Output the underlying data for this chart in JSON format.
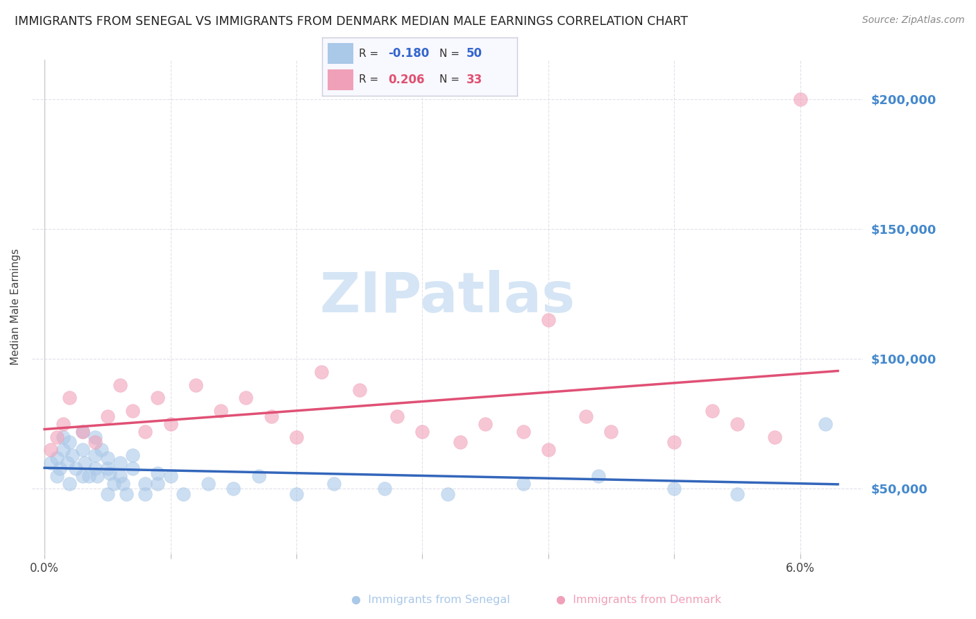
{
  "title": "IMMIGRANTS FROM SENEGAL VS IMMIGRANTS FROM DENMARK MEDIAN MALE EARNINGS CORRELATION CHART",
  "source": "Source: ZipAtlas.com",
  "ylabel": "Median Male Earnings",
  "xlim": [
    -0.001,
    0.065
  ],
  "ylim": [
    25000,
    215000
  ],
  "yticks": [
    50000,
    100000,
    150000,
    200000
  ],
  "xticks": [
    0.0,
    0.01,
    0.02,
    0.03,
    0.04,
    0.05,
    0.06
  ],
  "xtick_labels": [
    "0.0%",
    "",
    "",
    "",
    "",
    "",
    "6.0%"
  ],
  "R_senegal": -0.18,
  "N_senegal": 50,
  "R_denmark": 0.206,
  "N_denmark": 33,
  "senegal_color": "#aac8e8",
  "denmark_color": "#f0a0b8",
  "trend_senegal_color": "#3366bb",
  "trend_denmark_color": "#e05075",
  "watermark": "ZIPatlas",
  "watermark_color": "#d5e5f5",
  "background_color": "#ffffff",
  "grid_color": "#e0e0ec",
  "legend_box_color": "#f8f8ff",
  "legend_border_color": "#ccccdd",
  "senegal_x": [
    0.0005,
    0.001,
    0.001,
    0.0012,
    0.0015,
    0.0015,
    0.0018,
    0.002,
    0.002,
    0.0022,
    0.0025,
    0.003,
    0.003,
    0.003,
    0.0032,
    0.0035,
    0.004,
    0.004,
    0.004,
    0.0042,
    0.0045,
    0.005,
    0.005,
    0.005,
    0.0052,
    0.0055,
    0.006,
    0.006,
    0.0062,
    0.0065,
    0.007,
    0.007,
    0.008,
    0.008,
    0.009,
    0.009,
    0.01,
    0.011,
    0.013,
    0.015,
    0.017,
    0.02,
    0.023,
    0.027,
    0.032,
    0.038,
    0.044,
    0.05,
    0.055,
    0.062
  ],
  "senegal_y": [
    60000,
    55000,
    62000,
    58000,
    65000,
    70000,
    60000,
    52000,
    68000,
    63000,
    58000,
    65000,
    55000,
    72000,
    60000,
    55000,
    63000,
    70000,
    58000,
    55000,
    65000,
    58000,
    62000,
    48000,
    56000,
    52000,
    55000,
    60000,
    52000,
    48000,
    58000,
    63000,
    52000,
    48000,
    56000,
    52000,
    55000,
    48000,
    52000,
    50000,
    55000,
    48000,
    52000,
    50000,
    48000,
    52000,
    55000,
    50000,
    48000,
    75000
  ],
  "denmark_x": [
    0.0005,
    0.001,
    0.0015,
    0.002,
    0.003,
    0.004,
    0.005,
    0.006,
    0.007,
    0.008,
    0.009,
    0.01,
    0.012,
    0.014,
    0.016,
    0.018,
    0.02,
    0.022,
    0.025,
    0.028,
    0.03,
    0.033,
    0.035,
    0.038,
    0.04,
    0.043,
    0.045,
    0.05,
    0.053,
    0.055,
    0.058,
    0.04,
    0.06
  ],
  "denmark_y": [
    65000,
    70000,
    75000,
    85000,
    72000,
    68000,
    78000,
    90000,
    80000,
    72000,
    85000,
    75000,
    90000,
    80000,
    85000,
    78000,
    70000,
    95000,
    88000,
    78000,
    72000,
    68000,
    75000,
    72000,
    65000,
    78000,
    72000,
    68000,
    80000,
    75000,
    70000,
    115000,
    200000
  ]
}
